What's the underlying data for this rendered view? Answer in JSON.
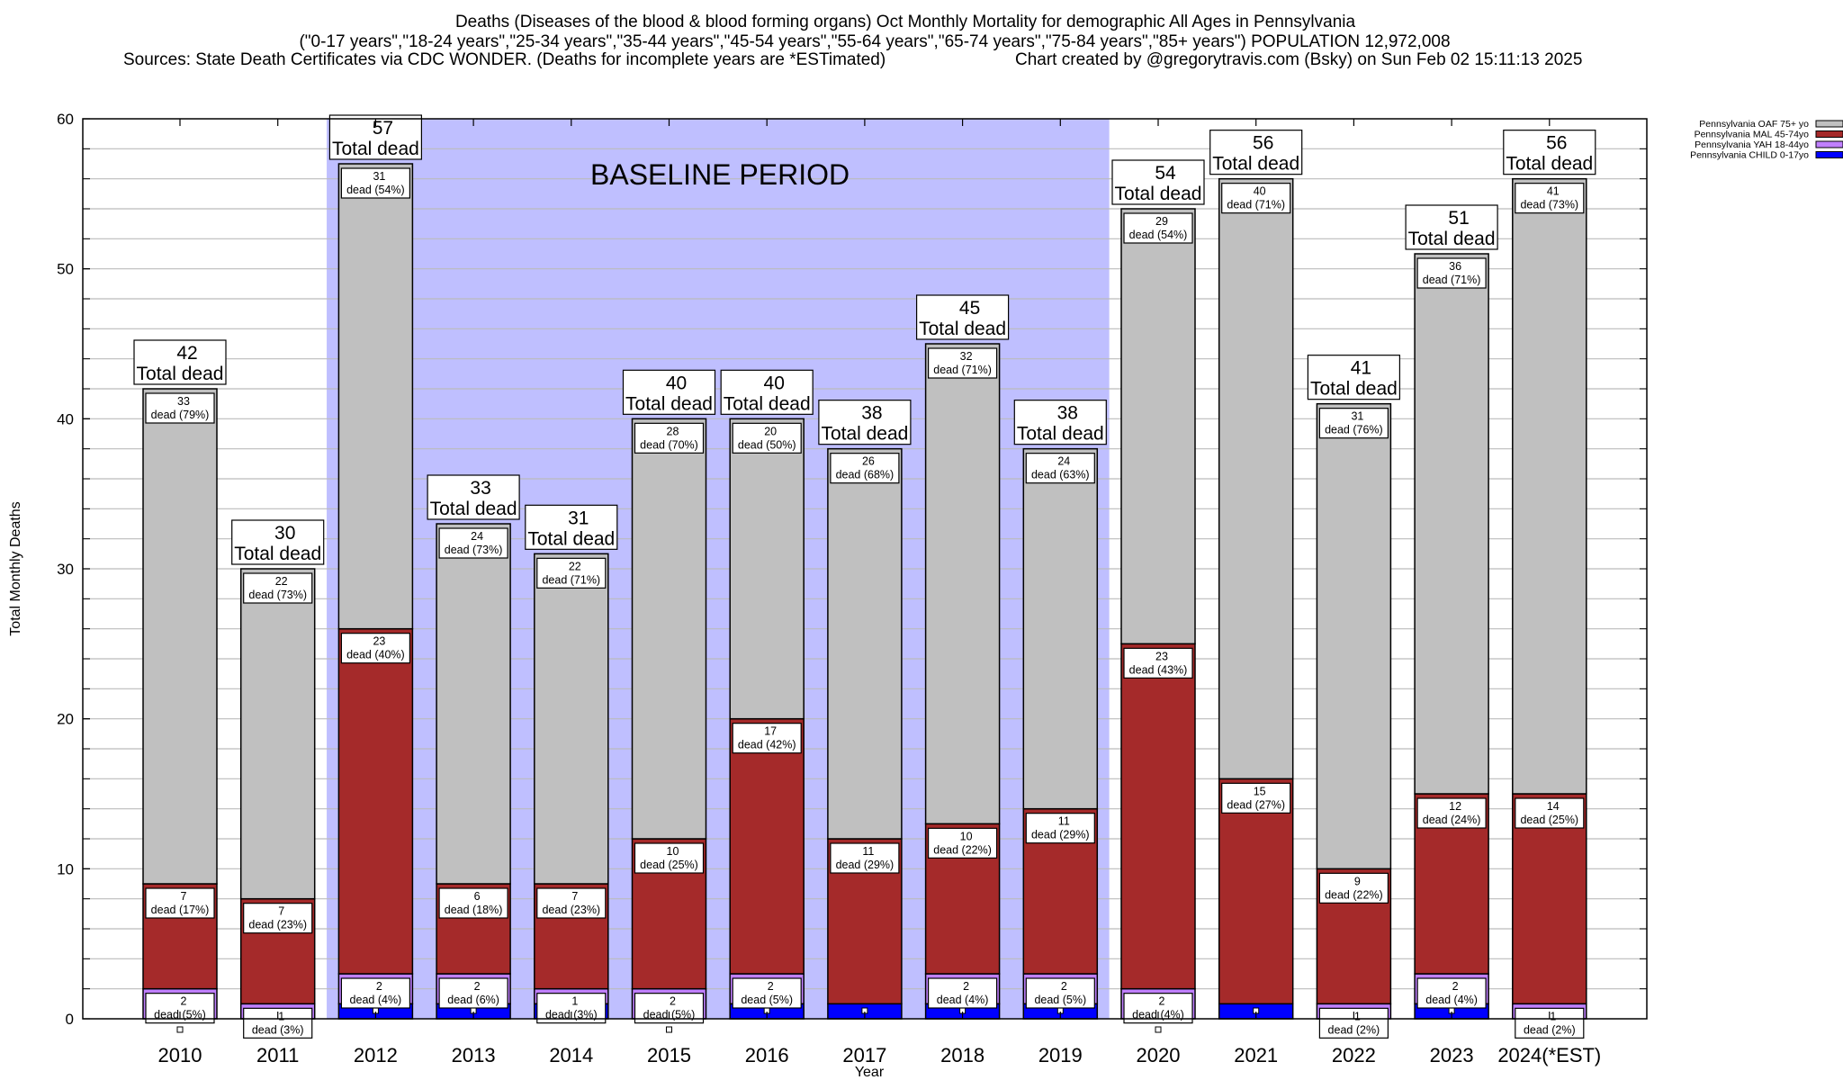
{
  "chart_data": {
    "type": "bar",
    "stacked": true,
    "title": "Deaths (Diseases of the blood & blood forming organs) Oct Monthly Mortality for demographic All Ages in Pennsylvania",
    "subtitle": "(\"0-17 years\",\"18-24 years\",\"25-34 years\",\"35-44 years\",\"45-54 years\",\"55-64 years\",\"65-74 years\",\"75-84 years\",\"85+ years\") POPULATION 12,972,008",
    "sources": "Sources: State Death Certificates via CDC WONDER. (Deaths for incomplete years are *ESTimated)",
    "credit": "Chart created by @gregorytravis.com (Bsky) on Sun Feb 02 15:11:13 2025",
    "xlabel": "Year",
    "ylabel": "Total Monthly Deaths",
    "ylim": [
      0,
      60
    ],
    "yticks": [
      0,
      10,
      20,
      30,
      40,
      50,
      60
    ],
    "grid": true,
    "grid_step": 2,
    "legend_position": "top-right",
    "annotation": "BASELINE PERIOD",
    "baseline_period": [
      "2012",
      "2019"
    ],
    "total_label_suffix": "Total dead",
    "segment_label_word": "dead",
    "categories": [
      "2010",
      "2011",
      "2012",
      "2013",
      "2014",
      "2015",
      "2016",
      "2017",
      "2018",
      "2019",
      "2020",
      "2021",
      "2022",
      "2023",
      "2024(*EST)"
    ],
    "totals": [
      42,
      30,
      57,
      33,
      31,
      40,
      40,
      38,
      45,
      38,
      54,
      56,
      41,
      51,
      56
    ],
    "series": [
      {
        "name": "Pennsylvania CHILD 0-17yo",
        "color": "#0000ff",
        "values": [
          0,
          0,
          1,
          1,
          1,
          0,
          1,
          1,
          1,
          1,
          0,
          1,
          0,
          1,
          0
        ],
        "pct": [
          "",
          "",
          "",
          "",
          "",
          "",
          "",
          "",
          "",
          "",
          "",
          "",
          "",
          "",
          ""
        ]
      },
      {
        "name": "Pennsylvania YAH 18-44yo",
        "color": "#c080ff",
        "values": [
          2,
          1,
          2,
          2,
          1,
          2,
          2,
          0,
          2,
          2,
          2,
          0,
          1,
          2,
          1
        ],
        "pct": [
          "5%",
          "3%",
          "4%",
          "6%",
          "3%",
          "5%",
          "5%",
          "",
          "4%",
          "5%",
          "4%",
          "",
          "2%",
          "4%",
          "2%"
        ]
      },
      {
        "name": "Pennsylvania MAL 45-74yo",
        "color": "#a52a2a",
        "values": [
          7,
          7,
          23,
          6,
          7,
          10,
          17,
          11,
          10,
          11,
          23,
          15,
          9,
          12,
          14
        ],
        "pct": [
          "17%",
          "23%",
          "40%",
          "18%",
          "23%",
          "25%",
          "42%",
          "29%",
          "22%",
          "29%",
          "43%",
          "27%",
          "22%",
          "24%",
          "25%"
        ]
      },
      {
        "name": "Pennsylvania OAF 75+ yo",
        "color": "#c0c0c0",
        "values": [
          33,
          22,
          31,
          24,
          22,
          28,
          20,
          26,
          32,
          24,
          29,
          40,
          31,
          36,
          41
        ],
        "pct": [
          "79%",
          "73%",
          "54%",
          "73%",
          "71%",
          "70%",
          "50%",
          "68%",
          "71%",
          "63%",
          "54%",
          "71%",
          "76%",
          "71%",
          "73%"
        ]
      }
    ],
    "legend_order": [
      "Pennsylvania OAF 75+ yo",
      "Pennsylvania MAL 45-74yo",
      "Pennsylvania YAH 18-44yo",
      "Pennsylvania CHILD 0-17yo"
    ],
    "colors": {
      "baseline_shade": "#bfbfff",
      "grid": "#bbbbbb"
    }
  }
}
